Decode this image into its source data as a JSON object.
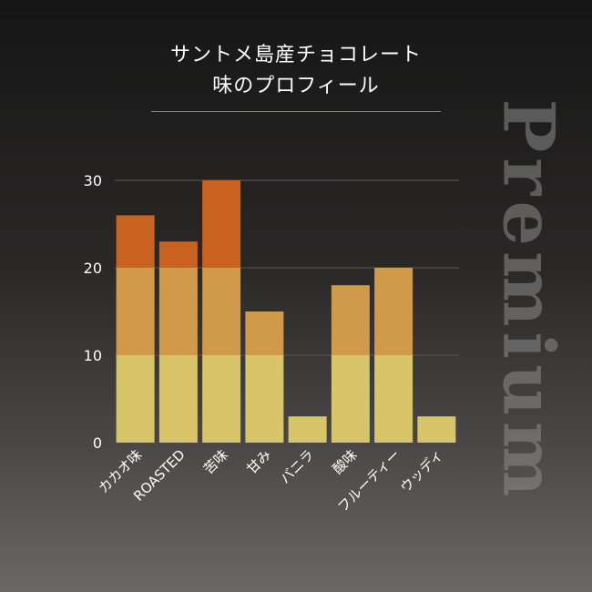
{
  "title_line1": "サントメ島産チョコレート",
  "title_line2": "味のプロフィール",
  "watermark": "Premium",
  "colors": {
    "band_low": "#d8c469",
    "band_mid": "#d19a4a",
    "band_high": "#c9621f",
    "grid": "#5a5856"
  },
  "chart_data": {
    "type": "bar",
    "categories": [
      "カカオ味",
      "ROASTED",
      "苦味",
      "甘み",
      "バニラ",
      "酸味",
      "フルーティー",
      "ウッディ"
    ],
    "values": [
      26,
      23,
      30,
      15,
      3,
      18,
      20,
      3
    ],
    "ylim": [
      0,
      30
    ],
    "yticks": [
      0,
      10,
      20,
      30
    ],
    "color_bands": [
      [
        0,
        10
      ],
      [
        10,
        20
      ],
      [
        20,
        30
      ]
    ],
    "grid": true
  }
}
